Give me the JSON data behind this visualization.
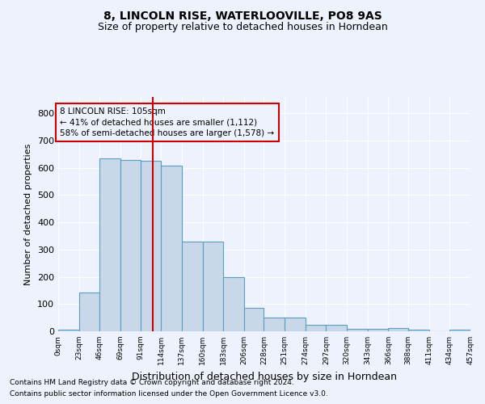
{
  "title1": "8, LINCOLN RISE, WATERLOOVILLE, PO8 9AS",
  "title2": "Size of property relative to detached houses in Horndean",
  "xlabel": "Distribution of detached houses by size in Horndean",
  "ylabel": "Number of detached properties",
  "footnote1": "Contains HM Land Registry data © Crown copyright and database right 2024.",
  "footnote2": "Contains public sector information licensed under the Open Government Licence v3.0.",
  "annotation_line1": "8 LINCOLN RISE: 105sqm",
  "annotation_line2": "← 41% of detached houses are smaller (1,112)",
  "annotation_line3": "58% of semi-detached houses are larger (1,578) →",
  "property_size": 105,
  "bin_edges": [
    0,
    23,
    46,
    69,
    91,
    114,
    137,
    160,
    183,
    206,
    228,
    251,
    274,
    297,
    320,
    343,
    366,
    388,
    411,
    434,
    457
  ],
  "bar_heights": [
    5,
    143,
    635,
    630,
    627,
    607,
    330,
    330,
    200,
    85,
    50,
    50,
    25,
    25,
    10,
    10,
    12,
    5,
    0,
    5
  ],
  "bar_color": "#c8d8e8",
  "bar_edge_color": "#5a9ec8",
  "vline_color": "#cc0000",
  "vline_x": 105,
  "annotation_box_color": "#cc0000",
  "ylim": [
    0,
    860
  ],
  "yticks": [
    0,
    100,
    200,
    300,
    400,
    500,
    600,
    700,
    800
  ],
  "background_color": "#eef2fc",
  "grid_color": "#ffffff"
}
